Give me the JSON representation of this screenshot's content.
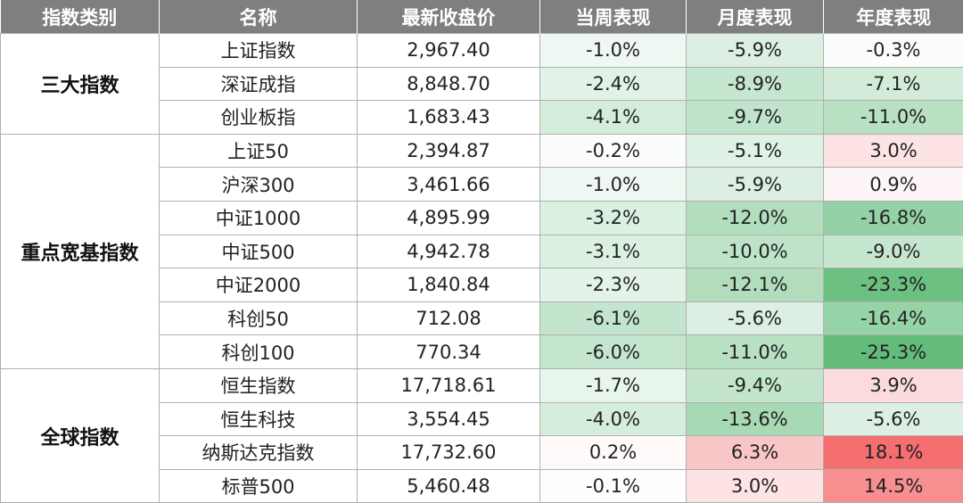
{
  "headers": [
    "指数类别",
    "名称",
    "最新收盘价",
    "当周表现",
    "月度表现",
    "年度表现"
  ],
  "groups": [
    {
      "category": "三大指数",
      "rows": [
        {
          "name": "上证指数",
          "close": "2,967.40",
          "week": "-1.0%",
          "week_bg": "#eef7f1",
          "month": "-5.9%",
          "month_bg": "#dcefe2",
          "year": "-0.3%",
          "year_bg": "#fafdfb"
        },
        {
          "name": "深证成指",
          "close": "8,848.70",
          "week": "-2.4%",
          "week_bg": "#e2f2e7",
          "month": "-8.9%",
          "month_bg": "#c5e6cf",
          "year": "-7.1%",
          "year_bg": "#d2ecd9"
        },
        {
          "name": "创业板指",
          "close": "1,683.43",
          "week": "-4.1%",
          "week_bg": "#d4edda",
          "month": "-9.7%",
          "month_bg": "#c0e4cb",
          "year": "-11.0%",
          "year_bg": "#b8e0c3"
        }
      ]
    },
    {
      "category": "重点宽基指数",
      "rows": [
        {
          "name": "上证50",
          "close": "2,394.87",
          "week": "-0.2%",
          "week_bg": "#fbfdfc",
          "month": "-5.1%",
          "month_bg": "#e0f1e5",
          "year": "3.0%",
          "year_bg": "#fde3e4"
        },
        {
          "name": "沪深300",
          "close": "3,461.66",
          "week": "-1.0%",
          "week_bg": "#eef7f1",
          "month": "-5.9%",
          "month_bg": "#dcefe2",
          "year": "0.9%",
          "year_bg": "#fdf5f6"
        },
        {
          "name": "中证1000",
          "close": "4,895.99",
          "week": "-3.2%",
          "week_bg": "#daf0e0",
          "month": "-12.0%",
          "month_bg": "#b2debe",
          "year": "-16.8%",
          "year_bg": "#94d2a5"
        },
        {
          "name": "中证500",
          "close": "4,942.78",
          "week": "-3.1%",
          "week_bg": "#dbf0e1",
          "month": "-10.0%",
          "month_bg": "#bee3c9",
          "year": "-9.0%",
          "year_bg": "#c5e6cf"
        },
        {
          "name": "中证2000",
          "close": "1,840.84",
          "week": "-2.3%",
          "week_bg": "#e3f3e8",
          "month": "-12.1%",
          "month_bg": "#b1ddbd",
          "year": "-23.3%",
          "year_bg": "#6cc082"
        },
        {
          "name": "科创50",
          "close": "712.08",
          "week": "-6.1%",
          "week_bg": "#c3e5cd",
          "month": "-5.6%",
          "month_bg": "#dcefe2",
          "year": "-16.4%",
          "year_bg": "#96d3a7"
        },
        {
          "name": "科创100",
          "close": "770.34",
          "week": "-6.0%",
          "week_bg": "#c4e5ce",
          "month": "-11.0%",
          "month_bg": "#b8e0c3",
          "year": "-25.3%",
          "year_bg": "#63bc7a"
        }
      ]
    },
    {
      "category": "全球指数",
      "rows": [
        {
          "name": "恒生指数",
          "close": "17,718.61",
          "week": "-1.7%",
          "week_bg": "#e8f5ec",
          "month": "-9.4%",
          "month_bg": "#c2e5cc",
          "year": "3.9%",
          "year_bg": "#fcdbdc"
        },
        {
          "name": "恒生科技",
          "close": "3,554.45",
          "week": "-4.0%",
          "week_bg": "#d5eddb",
          "month": "-13.6%",
          "month_bg": "#a7d9b5",
          "year": "-5.6%",
          "year_bg": "#dcefe2"
        },
        {
          "name": "纳斯达克指数",
          "close": "17,732.60",
          "week": "0.2%",
          "week_bg": "#fefafa",
          "month": "6.3%",
          "month_bg": "#f9c6c8",
          "year": "18.1%",
          "year_bg": "#f56e70"
        },
        {
          "name": "标普500",
          "close": "5,460.48",
          "week": "-0.1%",
          "week_bg": "#fdfefd",
          "month": "3.0%",
          "month_bg": "#fde3e4",
          "year": "14.5%",
          "year_bg": "#f78f90"
        }
      ]
    }
  ]
}
